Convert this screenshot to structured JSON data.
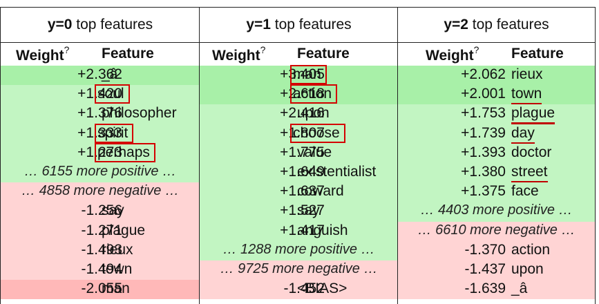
{
  "colors": {
    "pos_strong": "#a8f0a8",
    "pos_mid": "#c2f5c2",
    "pos_light": "#d9fad9",
    "neg_strong": "#ffb8b8",
    "neg_light": "#ffd4d4",
    "highlight_box": "#d40000"
  },
  "panels": [
    {
      "label": "y=0",
      "title_rest": " top features",
      "weight_header": "Weight",
      "weight_sup": "?",
      "feature_header": "Feature",
      "rows": [
        {
          "weight": "+2.362",
          "feature": "_â",
          "tone": "pos_strong"
        },
        {
          "weight": "+1.420",
          "feature": "soul",
          "tone": "pos_mid",
          "mark": "box"
        },
        {
          "weight": "+1.376",
          "feature": "philosopher",
          "tone": "pos_mid"
        },
        {
          "weight": "+1.333",
          "feature": "spirit",
          "tone": "pos_mid",
          "mark": "box"
        },
        {
          "weight": "+1.273",
          "feature": "perhaps",
          "tone": "pos_mid",
          "mark": "box"
        },
        {
          "more": "… 6155 more positive …",
          "tone": "pos_mid"
        },
        {
          "more": "… 4858 more negative …",
          "tone": "neg_light"
        },
        {
          "weight": "-1.256",
          "feature": "say",
          "tone": "neg_light"
        },
        {
          "weight": "-1.271",
          "feature": "plague",
          "tone": "neg_light"
        },
        {
          "weight": "-1.493",
          "feature": "rieux",
          "tone": "neg_light"
        },
        {
          "weight": "-1.494",
          "feature": "town",
          "tone": "neg_light"
        },
        {
          "weight": "-2.055",
          "feature": "man",
          "tone": "neg_strong"
        }
      ]
    },
    {
      "label": "y=1",
      "title_rest": " top features",
      "weight_header": "Weight",
      "weight_sup": "?",
      "feature_header": "Feature",
      "rows": [
        {
          "weight": "+3.405",
          "feature": "man",
          "tone": "pos_strong",
          "mark": "box"
        },
        {
          "weight": "+2.618",
          "feature": "action",
          "tone": "pos_strong",
          "mark": "box"
        },
        {
          "weight": "+2.416",
          "feature": "upon",
          "tone": "pos_mid"
        },
        {
          "weight": "+1.807",
          "feature": "choose",
          "tone": "pos_mid",
          "mark": "box"
        },
        {
          "weight": "+1.775",
          "feature": "value",
          "tone": "pos_mid"
        },
        {
          "weight": "+1.649",
          "feature": "existentialist",
          "tone": "pos_mid"
        },
        {
          "weight": "+1.637",
          "feature": "coward",
          "tone": "pos_mid"
        },
        {
          "weight": "+1.527",
          "feature": "say",
          "tone": "pos_mid"
        },
        {
          "weight": "+1.417",
          "feature": "anguish",
          "tone": "pos_mid"
        },
        {
          "more": "… 1288 more positive …",
          "tone": "pos_mid"
        },
        {
          "more": "… 9725 more negative …",
          "tone": "neg_light"
        },
        {
          "weight": "-1.452",
          "feature": "<BIAS>",
          "tone": "neg_light"
        }
      ]
    },
    {
      "label": "y=2",
      "title_rest": " top features",
      "weight_header": "Weight",
      "weight_sup": "?",
      "feature_header": "Feature",
      "rows": [
        {
          "weight": "+2.062",
          "feature": "rieux",
          "tone": "pos_strong"
        },
        {
          "weight": "+2.001",
          "feature": "town",
          "tone": "pos_strong",
          "mark": "underline"
        },
        {
          "weight": "+1.753",
          "feature": "plague",
          "tone": "pos_mid",
          "mark": "underline"
        },
        {
          "weight": "+1.739",
          "feature": "day",
          "tone": "pos_mid",
          "mark": "underline"
        },
        {
          "weight": "+1.393",
          "feature": "doctor",
          "tone": "pos_mid"
        },
        {
          "weight": "+1.380",
          "feature": "street",
          "tone": "pos_mid",
          "mark": "underline"
        },
        {
          "weight": "+1.375",
          "feature": "face",
          "tone": "pos_mid"
        },
        {
          "more": "… 4403 more positive …",
          "tone": "pos_mid"
        },
        {
          "more": "… 6610 more negative …",
          "tone": "neg_light"
        },
        {
          "weight": "-1.370",
          "feature": "action",
          "tone": "neg_light"
        },
        {
          "weight": "-1.437",
          "feature": "upon",
          "tone": "neg_light"
        },
        {
          "weight": "-1.639",
          "feature": "_â",
          "tone": "neg_light"
        }
      ]
    }
  ]
}
